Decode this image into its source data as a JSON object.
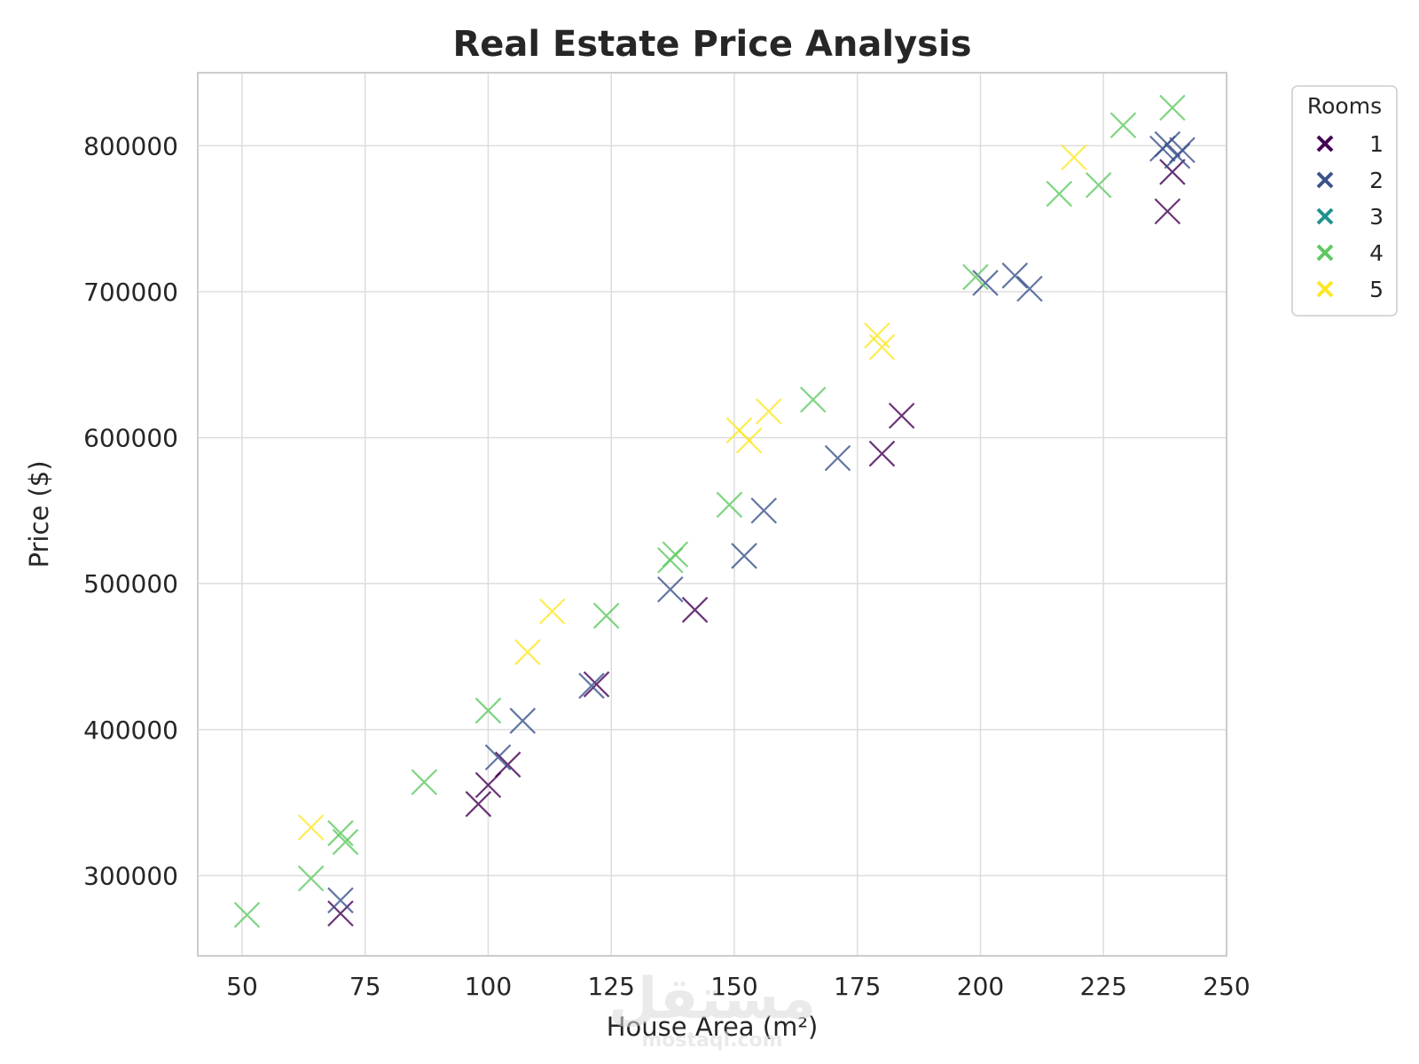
{
  "chart_data": {
    "type": "scatter",
    "title": "Real Estate Price Analysis",
    "xlabel": "House Area (m²)",
    "ylabel": "Price ($)",
    "xlim": [
      41,
      250
    ],
    "ylim": [
      245000,
      850000
    ],
    "xticks": [
      50,
      75,
      100,
      125,
      150,
      175,
      200,
      225,
      250
    ],
    "xtick_labels": [
      "50",
      "75",
      "100",
      "125",
      "150",
      "175",
      "200",
      "225",
      "250"
    ],
    "yticks": [
      300000,
      400000,
      500000,
      600000,
      700000,
      800000
    ],
    "ytick_labels": [
      "300000",
      "400000",
      "500000",
      "600000",
      "700000",
      "800000"
    ],
    "grid": true,
    "marker": "x",
    "legend": {
      "title": "Rooms",
      "placement": "outside-top-right"
    },
    "series": [
      {
        "name": "1",
        "color": "#440154",
        "points": [
          [
            70,
            274000
          ],
          [
            98,
            349000
          ],
          [
            100,
            362000
          ],
          [
            104,
            376000
          ],
          [
            122,
            431000
          ],
          [
            142,
            482000
          ],
          [
            180,
            589000
          ],
          [
            184,
            615000
          ],
          [
            238,
            755000
          ],
          [
            239,
            782000
          ]
        ]
      },
      {
        "name": "2",
        "color": "#3b528b",
        "points": [
          [
            70,
            283000
          ],
          [
            102,
            381000
          ],
          [
            107,
            406000
          ],
          [
            121,
            430000
          ],
          [
            137,
            496000
          ],
          [
            152,
            519000
          ],
          [
            156,
            550000
          ],
          [
            171,
            586000
          ],
          [
            201,
            706000
          ],
          [
            207,
            711000
          ],
          [
            210,
            702000
          ],
          [
            237,
            798000
          ],
          [
            238,
            801000
          ],
          [
            240,
            793000
          ],
          [
            241,
            797000
          ]
        ]
      },
      {
        "name": "3",
        "color": "#21918c",
        "points": []
      },
      {
        "name": "4",
        "color": "#5ec962",
        "points": [
          [
            51,
            273000
          ],
          [
            64,
            298000
          ],
          [
            70,
            329000
          ],
          [
            71,
            323000
          ],
          [
            87,
            364000
          ],
          [
            100,
            413000
          ],
          [
            124,
            478000
          ],
          [
            137,
            516000
          ],
          [
            138,
            520000
          ],
          [
            149,
            554000
          ],
          [
            166,
            626000
          ],
          [
            199,
            710000
          ],
          [
            216,
            767000
          ],
          [
            224,
            773000
          ],
          [
            229,
            814000
          ],
          [
            239,
            826000
          ]
        ]
      },
      {
        "name": "5",
        "color": "#fde725",
        "points": [
          [
            64,
            333000
          ],
          [
            108,
            453000
          ],
          [
            113,
            481000
          ],
          [
            151,
            605000
          ],
          [
            153,
            598000
          ],
          [
            157,
            618000
          ],
          [
            179,
            670000
          ],
          [
            180,
            662000
          ],
          [
            219,
            792000
          ]
        ]
      }
    ]
  },
  "watermark": {
    "text": "مستقل",
    "subtext": "mostaql.com"
  }
}
